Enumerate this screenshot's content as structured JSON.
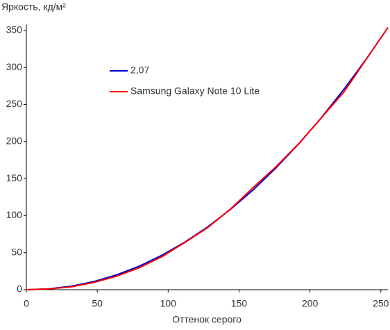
{
  "chart_data": {
    "type": "line",
    "y_label": "Яркость, кд/м²",
    "x_label": "Оттенок серого",
    "x": [
      0,
      16,
      32,
      48,
      64,
      80,
      96,
      112,
      128,
      144,
      160,
      176,
      192,
      208,
      224,
      240,
      255
    ],
    "series": [
      {
        "name": "2,07",
        "color": "#0000cc",
        "values": [
          0,
          1.2,
          4.8,
          11.2,
          20.2,
          32.1,
          46.9,
          64.5,
          85.0,
          108.5,
          134.9,
          164.4,
          196.7,
          232.2,
          270.7,
          312.2,
          354
        ]
      },
      {
        "name": "Samsung Galaxy Note 10 Lite",
        "color": "#ff0000",
        "values": [
          0,
          1,
          4,
          10,
          18.5,
          30,
          45,
          64,
          84,
          109,
          138,
          166,
          197,
          232,
          267,
          312,
          354
        ]
      }
    ],
    "xlim": [
      0,
      255
    ],
    "ylim": [
      0,
      358
    ],
    "xticks": [
      0,
      50,
      100,
      150,
      200,
      250
    ],
    "yticks": [
      0,
      50,
      100,
      150,
      200,
      250,
      300,
      350
    ],
    "grid": false,
    "legend": "upper left"
  }
}
